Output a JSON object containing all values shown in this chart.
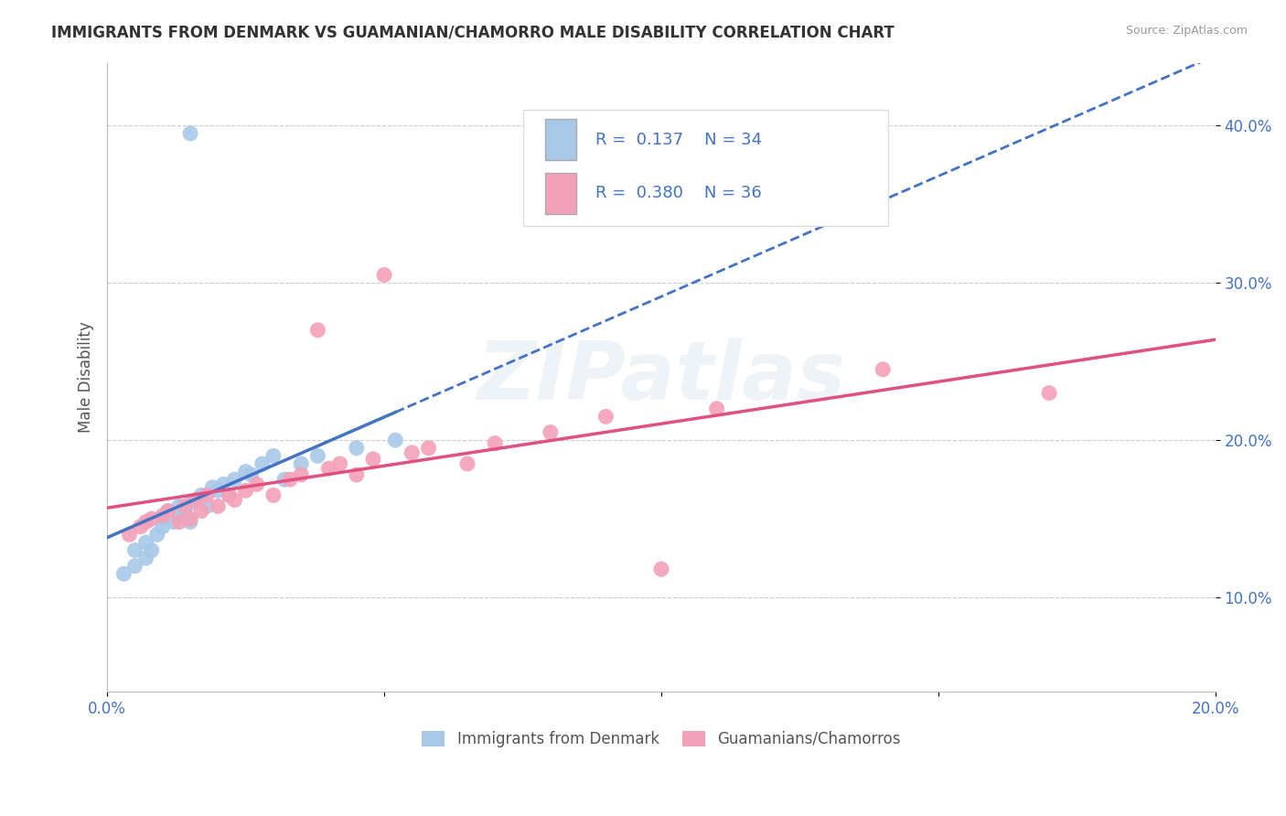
{
  "title": "IMMIGRANTS FROM DENMARK VS GUAMANIAN/CHAMORRO MALE DISABILITY CORRELATION CHART",
  "source": "Source: ZipAtlas.com",
  "ylabel": "Male Disability",
  "xlim": [
    0.0,
    0.2
  ],
  "ylim": [
    0.04,
    0.44
  ],
  "r1": 0.137,
  "n1": 34,
  "r2": 0.38,
  "n2": 36,
  "color1": "#a8c8e8",
  "color2": "#f4a0b8",
  "line_color1": "#4472c4",
  "line_color2": "#e05080",
  "background_color": "#ffffff",
  "legend_label1": "Immigrants from Denmark",
  "legend_label2": "Guamanians/Chamorros",
  "denmark_x": [
    0.003,
    0.005,
    0.005,
    0.007,
    0.007,
    0.008,
    0.009,
    0.01,
    0.01,
    0.011,
    0.012,
    0.013,
    0.013,
    0.014,
    0.015,
    0.015,
    0.016,
    0.017,
    0.018,
    0.019,
    0.02,
    0.021,
    0.022,
    0.023,
    0.025,
    0.026,
    0.028,
    0.03,
    0.032,
    0.035,
    0.038,
    0.045,
    0.052,
    0.015
  ],
  "denmark_y": [
    0.115,
    0.12,
    0.13,
    0.125,
    0.135,
    0.13,
    0.14,
    0.145,
    0.15,
    0.155,
    0.148,
    0.152,
    0.158,
    0.155,
    0.16,
    0.148,
    0.162,
    0.165,
    0.158,
    0.17,
    0.168,
    0.172,
    0.165,
    0.175,
    0.18,
    0.178,
    0.185,
    0.19,
    0.175,
    0.185,
    0.19,
    0.195,
    0.2,
    0.395
  ],
  "guam_x": [
    0.004,
    0.006,
    0.007,
    0.008,
    0.01,
    0.011,
    0.013,
    0.014,
    0.015,
    0.016,
    0.017,
    0.018,
    0.02,
    0.022,
    0.023,
    0.025,
    0.027,
    0.03,
    0.033,
    0.035,
    0.038,
    0.04,
    0.042,
    0.045,
    0.048,
    0.05,
    0.055,
    0.058,
    0.065,
    0.07,
    0.08,
    0.09,
    0.1,
    0.11,
    0.14,
    0.17
  ],
  "guam_y": [
    0.14,
    0.145,
    0.148,
    0.15,
    0.152,
    0.155,
    0.148,
    0.158,
    0.15,
    0.162,
    0.155,
    0.165,
    0.158,
    0.165,
    0.162,
    0.168,
    0.172,
    0.165,
    0.175,
    0.178,
    0.27,
    0.182,
    0.185,
    0.178,
    0.188,
    0.305,
    0.192,
    0.195,
    0.185,
    0.198,
    0.205,
    0.215,
    0.118,
    0.22,
    0.245,
    0.23
  ]
}
